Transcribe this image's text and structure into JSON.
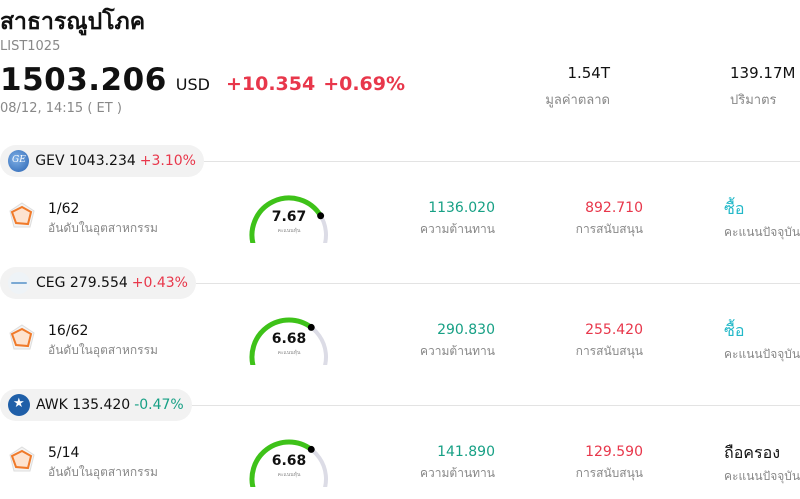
{
  "header": {
    "title": "สาธารณูปโภค",
    "code": "LIST1025",
    "price": "1503.206",
    "currency": "USD",
    "change": "+10.354",
    "change_pct": "+0.69%",
    "timestamp": "08/12, 14:15  ( ET )"
  },
  "stats": {
    "market_cap": {
      "value": "1.54T",
      "label": "มูลค่าตลาด"
    },
    "volume": {
      "value": "139.17M",
      "label": "ปริมาตร"
    }
  },
  "colors": {
    "up": "#e8374b",
    "down": "#17a085",
    "buy": "#22b8c8",
    "gauge_green": "#3ec219",
    "gauge_track": "#dcdce6"
  },
  "stocks": [
    {
      "ticker_line": "GEV 1043.234",
      "change": "+3.10%",
      "direction": "up",
      "logo_icon": "ge-logo-icon",
      "rank": "1/62",
      "rank_label": "อันดับในอุตสาหกรรม",
      "score": "7.67",
      "score_fraction": 0.767,
      "score_label": "คะแนนหุ้น",
      "resistance": "1136.020",
      "resistance_label": "ความต้านทาน",
      "support": "892.710",
      "support_label": "การสนับสนุน",
      "rating": "ซื้อ",
      "rating_type": "buy",
      "rating_label": "คะแนนปัจจุบัน"
    },
    {
      "ticker_line": "CEG 279.554",
      "change": "+0.43%",
      "direction": "up",
      "logo_icon": "constellation-logo-icon",
      "rank": "16/62",
      "rank_label": "อันดับในอุตสาหกรรม",
      "score": "6.68",
      "score_fraction": 0.668,
      "score_label": "คะแนนหุ้น",
      "resistance": "290.830",
      "resistance_label": "ความต้านทาน",
      "support": "255.420",
      "support_label": "การสนับสนุน",
      "rating": "ซื้อ",
      "rating_type": "buy",
      "rating_label": "คะแนนปัจจุบัน"
    },
    {
      "ticker_line": "AWK 135.420",
      "change": "-0.47%",
      "direction": "down",
      "logo_icon": "american-water-logo-icon",
      "rank": "5/14",
      "rank_label": "อันดับในอุตสาหกรรม",
      "score": "6.68",
      "score_fraction": 0.668,
      "score_label": "คะแนนหุ้น",
      "resistance": "141.890",
      "resistance_label": "ความต้านทาน",
      "support": "129.590",
      "support_label": "การสนับสนุน",
      "rating": "ถือครอง",
      "rating_type": "hold",
      "rating_label": "คะแนนปัจจุบัน"
    }
  ]
}
